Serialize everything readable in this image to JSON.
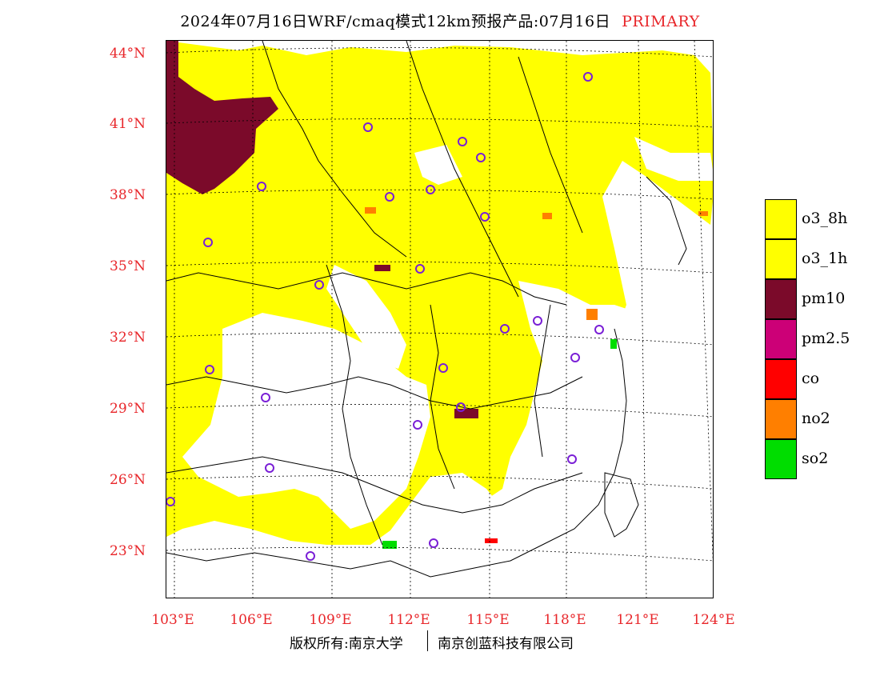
{
  "title": {
    "main": "2024年07月16日WRF/cmaq模式12km预报产品:07月16日",
    "tag": "PRIMARY"
  },
  "axes": {
    "latitudes": [
      "44°N",
      "41°N",
      "38°N",
      "35°N",
      "32°N",
      "29°N",
      "26°N",
      "23°N"
    ],
    "longitudes": [
      "103°E",
      "106°E",
      "109°E",
      "112°E",
      "115°E",
      "118°E",
      "121°E",
      "124°E"
    ]
  },
  "legend": [
    {
      "label": "o3_8h",
      "color": "#ffff00"
    },
    {
      "label": "o3_1h",
      "color": "#ffff00"
    },
    {
      "label": "pm10",
      "color": "#7b0a2a"
    },
    {
      "label": "pm2.5",
      "color": "#cc0077"
    },
    {
      "label": "co",
      "color": "#ff0000"
    },
    {
      "label": "no2",
      "color": "#ff7f00"
    },
    {
      "label": "so2",
      "color": "#00dd00"
    }
  ],
  "footer": {
    "left": "版权所有:南京大学",
    "right": "南京创蓝科技有限公司"
  },
  "colors": {
    "accent": "#e8262a",
    "o3": "#ffff00",
    "pm10": "#7b0a2a",
    "no2": "#ff7f00",
    "so2": "#00dd00",
    "co": "#ff0000",
    "station_marker": "#7a1fd6"
  }
}
